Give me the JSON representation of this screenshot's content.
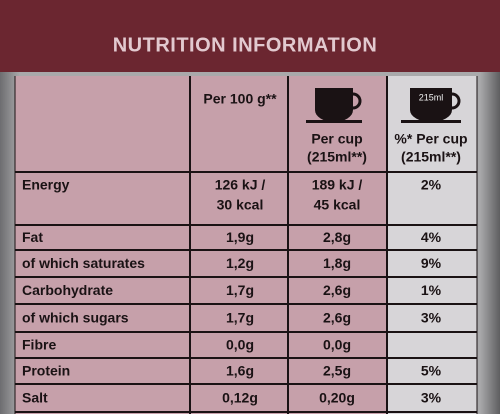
{
  "title": "NUTRITION INFORMATION",
  "table": {
    "header": {
      "per_100g": "Per 100 g**",
      "per_cup": [
        "Per cup",
        "(215ml**)"
      ],
      "percent_per_cup": [
        "%* Per cup",
        "(215ml**)"
      ],
      "cup_label": "215ml"
    },
    "rows": [
      [
        "Energy",
        [
          "126 kJ /",
          "30 kcal"
        ],
        [
          "189 kJ /",
          "45 kcal"
        ],
        "2%"
      ],
      [
        "Fat",
        "1,9g",
        "2,8g",
        "4%"
      ],
      [
        "of which saturates",
        "1,2g",
        "1,8g",
        "9%"
      ],
      [
        "Carbohydrate",
        "1,7g",
        "2,6g",
        "1%"
      ],
      [
        "of which sugars",
        "1,7g",
        "2,6g",
        "3%"
      ],
      [
        "Fibre",
        "0,0g",
        "0,0g"
      ],
      [
        "Protein",
        "1,6g",
        "2,5g",
        "5%"
      ],
      [
        "Salt",
        "0,12g",
        "0,20g",
        "3%"
      ]
    ]
  }
}
